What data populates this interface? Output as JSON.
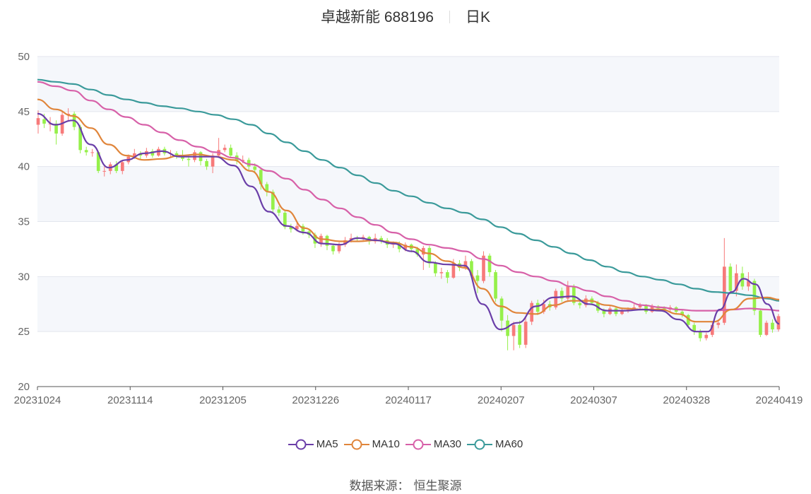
{
  "title": {
    "stock": "卓越新能 688196",
    "period": "日K"
  },
  "source": {
    "label": "数据来源：",
    "value": "恒生聚源"
  },
  "colors": {
    "up": "#f77a7a",
    "down": "#95f04a",
    "MA5": "#6a3ea8",
    "MA10": "#e0853a",
    "MA30": "#d760a8",
    "MA60": "#3a9a9a",
    "band": "#f5f7fb",
    "grid": "#e3e6ee",
    "axis": "#666666"
  },
  "chart_data": {
    "type": "candlestick",
    "ylim": [
      20,
      50
    ],
    "yticks": [
      20,
      25,
      30,
      35,
      40,
      45,
      50
    ],
    "xticks": [
      "20231024",
      "20231114",
      "20231205",
      "20231226",
      "20240117",
      "20240207",
      "20240307",
      "20240328",
      "20240419"
    ],
    "n_days": 121,
    "xtick_index": [
      0,
      15,
      30,
      45,
      60,
      75,
      90,
      105,
      120
    ],
    "legend": [
      "MA5",
      "MA10",
      "MA30",
      "MA60"
    ],
    "candles": [
      [
        43.8,
        44.4,
        45.1,
        43.0
      ],
      [
        44.3,
        43.9,
        44.8,
        43.5
      ],
      [
        43.9,
        43.9,
        44.5,
        43.2
      ],
      [
        43.9,
        43.0,
        44.2,
        42.0
      ],
      [
        43.0,
        44.7,
        45.0,
        42.8
      ],
      [
        44.7,
        44.8,
        45.3,
        44.2
      ],
      [
        44.8,
        43.6,
        45.0,
        43.3
      ],
      [
        43.6,
        41.5,
        43.8,
        41.2
      ],
      [
        41.5,
        41.3,
        41.8,
        41.0
      ],
      [
        41.3,
        41.3,
        41.6,
        40.9
      ],
      [
        41.3,
        39.6,
        41.4,
        39.4
      ],
      [
        39.6,
        39.6,
        40.0,
        39.1
      ],
      [
        39.6,
        40.2,
        40.4,
        39.3
      ],
      [
        40.2,
        39.6,
        40.5,
        39.4
      ],
      [
        39.6,
        40.4,
        40.6,
        39.3
      ],
      [
        40.4,
        40.9,
        41.1,
        40.2
      ],
      [
        40.9,
        41.2,
        41.6,
        40.7
      ],
      [
        41.2,
        41.0,
        41.4,
        40.6
      ],
      [
        41.0,
        41.4,
        41.7,
        40.8
      ],
      [
        41.4,
        41.0,
        41.6,
        40.8
      ],
      [
        41.0,
        41.6,
        41.8,
        40.9
      ],
      [
        41.6,
        41.2,
        41.8,
        41.0
      ],
      [
        41.2,
        41.2,
        41.5,
        40.8
      ],
      [
        41.2,
        41.0,
        41.4,
        40.7
      ],
      [
        41.0,
        40.7,
        41.5,
        40.5
      ],
      [
        40.7,
        40.6,
        41.0,
        40.0
      ],
      [
        40.6,
        41.3,
        41.5,
        40.4
      ],
      [
        41.3,
        40.5,
        41.4,
        40.1
      ],
      [
        40.5,
        40.0,
        40.7,
        39.7
      ],
      [
        40.0,
        41.0,
        41.2,
        39.4
      ],
      [
        41.0,
        41.5,
        42.6,
        40.8
      ],
      [
        41.5,
        41.7,
        42.0,
        41.3
      ],
      [
        41.7,
        41.0,
        42.0,
        40.8
      ],
      [
        41.0,
        40.5,
        41.3,
        40.2
      ],
      [
        40.5,
        40.6,
        41.0,
        40.3
      ],
      [
        40.6,
        40.0,
        40.8,
        39.7
      ],
      [
        40.0,
        39.7,
        40.3,
        39.4
      ],
      [
        39.7,
        38.4,
        39.9,
        37.9
      ],
      [
        38.4,
        37.7,
        38.6,
        37.3
      ],
      [
        37.7,
        36.1,
        37.9,
        35.8
      ],
      [
        36.1,
        35.8,
        36.4,
        35.5
      ],
      [
        35.8,
        34.5,
        36.0,
        34.3
      ],
      [
        34.5,
        34.3,
        34.8,
        34.0
      ],
      [
        34.3,
        34.6,
        34.9,
        34.1
      ],
      [
        34.6,
        34.1,
        34.8,
        33.8
      ],
      [
        34.1,
        33.8,
        34.3,
        33.5
      ],
      [
        33.8,
        33.0,
        34.0,
        32.6
      ],
      [
        33.0,
        33.7,
        33.9,
        32.7
      ],
      [
        33.7,
        32.8,
        33.8,
        32.4
      ],
      [
        32.8,
        32.3,
        33.0,
        32.0
      ],
      [
        32.3,
        32.9,
        33.1,
        32.1
      ],
      [
        32.9,
        33.3,
        33.6,
        32.7
      ],
      [
        33.3,
        33.5,
        33.9,
        33.1
      ],
      [
        33.5,
        33.4,
        33.7,
        33.2
      ],
      [
        33.4,
        33.6,
        33.8,
        33.3
      ],
      [
        33.6,
        33.2,
        33.7,
        32.9
      ],
      [
        33.2,
        33.5,
        33.9,
        33.0
      ],
      [
        33.5,
        33.3,
        33.7,
        33.0
      ],
      [
        33.3,
        32.9,
        33.5,
        32.6
      ],
      [
        32.9,
        33.0,
        33.2,
        32.6
      ],
      [
        33.0,
        32.5,
        33.2,
        32.2
      ],
      [
        32.5,
        32.9,
        33.1,
        32.3
      ],
      [
        32.9,
        32.5,
        33.0,
        32.2
      ],
      [
        32.5,
        32.0,
        32.7,
        31.8
      ],
      [
        32.0,
        32.6,
        32.8,
        30.6
      ],
      [
        32.6,
        31.2,
        32.8,
        30.8
      ],
      [
        31.2,
        30.3,
        31.4,
        30.0
      ],
      [
        30.3,
        30.4,
        30.8,
        29.8
      ],
      [
        30.4,
        29.9,
        30.6,
        29.4
      ],
      [
        29.9,
        31.2,
        31.6,
        29.8
      ],
      [
        31.2,
        30.8,
        31.5,
        30.5
      ],
      [
        30.8,
        31.4,
        31.9,
        30.6
      ],
      [
        31.4,
        30.1,
        31.6,
        29.9
      ],
      [
        30.1,
        29.6,
        30.6,
        28.5
      ],
      [
        29.6,
        31.9,
        32.3,
        29.4
      ],
      [
        31.9,
        30.4,
        32.1,
        30.0
      ],
      [
        30.4,
        28.0,
        30.6,
        27.7
      ],
      [
        28.0,
        26.0,
        28.2,
        25.0
      ],
      [
        26.0,
        24.6,
        26.5,
        23.3
      ],
      [
        24.6,
        25.6,
        25.9,
        23.3
      ],
      [
        25.6,
        23.8,
        26.0,
        23.5
      ],
      [
        23.8,
        25.9,
        26.3,
        23.5
      ],
      [
        25.9,
        27.6,
        27.8,
        25.6
      ],
      [
        27.6,
        26.8,
        27.9,
        26.5
      ],
      [
        26.8,
        27.5,
        27.9,
        26.6
      ],
      [
        27.5,
        27.2,
        27.8,
        26.9
      ],
      [
        27.2,
        28.7,
        28.9,
        27.0
      ],
      [
        28.7,
        28.0,
        29.0,
        27.7
      ],
      [
        28.0,
        29.1,
        29.6,
        27.8
      ],
      [
        29.1,
        27.6,
        29.3,
        27.4
      ],
      [
        27.6,
        27.4,
        27.9,
        27.1
      ],
      [
        27.4,
        28.0,
        28.3,
        27.2
      ],
      [
        28.0,
        27.6,
        28.2,
        27.4
      ],
      [
        27.6,
        26.9,
        27.8,
        26.7
      ],
      [
        26.9,
        26.6,
        27.1,
        26.3
      ],
      [
        26.6,
        27.1,
        27.3,
        26.5
      ],
      [
        27.1,
        26.6,
        27.3,
        26.4
      ],
      [
        26.6,
        26.9,
        27.1,
        26.5
      ],
      [
        26.9,
        27.0,
        27.2,
        26.7
      ],
      [
        27.0,
        27.2,
        27.5,
        26.9
      ],
      [
        27.2,
        27.4,
        27.6,
        27.0
      ],
      [
        27.4,
        26.8,
        27.5,
        26.6
      ],
      [
        26.8,
        27.3,
        27.5,
        26.7
      ],
      [
        27.3,
        27.1,
        27.4,
        26.9
      ],
      [
        27.1,
        27.0,
        27.3,
        26.8
      ],
      [
        27.0,
        27.2,
        27.4,
        26.8
      ],
      [
        27.2,
        26.8,
        27.3,
        26.6
      ],
      [
        26.8,
        26.5,
        27.0,
        26.3
      ],
      [
        26.5,
        25.6,
        26.6,
        25.4
      ],
      [
        25.6,
        25.0,
        25.8,
        24.7
      ],
      [
        25.0,
        24.4,
        25.2,
        24.1
      ],
      [
        24.4,
        24.7,
        24.9,
        24.2
      ],
      [
        24.7,
        25.6,
        25.9,
        24.5
      ],
      [
        25.6,
        25.8,
        26.1,
        25.3
      ],
      [
        25.8,
        30.9,
        33.5,
        25.6
      ],
      [
        30.9,
        28.7,
        31.2,
        28.4
      ],
      [
        28.7,
        30.3,
        31.1,
        28.2
      ],
      [
        30.3,
        29.1,
        30.9,
        28.8
      ],
      [
        29.1,
        29.6,
        30.4,
        28.7
      ],
      [
        29.6,
        26.9,
        29.8,
        26.5
      ]
    ],
    "candles_tail": [
      [
        26.9,
        24.7,
        27.0,
        24.5
      ],
      [
        24.7,
        25.8,
        26.0,
        24.6
      ],
      [
        25.8,
        25.2,
        26.1,
        24.9
      ],
      [
        25.2,
        26.4,
        26.6,
        25.0
      ]
    ],
    "MA5": [
      [
        0,
        44.8
      ],
      [
        3,
        43.8
      ],
      [
        6,
        44.2
      ],
      [
        9,
        42.0
      ],
      [
        12,
        39.9
      ],
      [
        15,
        40.6
      ],
      [
        18,
        41.2
      ],
      [
        21,
        41.4
      ],
      [
        24,
        40.9
      ],
      [
        27,
        40.9
      ],
      [
        30,
        40.9
      ],
      [
        33,
        40.1
      ],
      [
        36,
        38.2
      ],
      [
        39,
        35.9
      ],
      [
        42,
        34.6
      ],
      [
        45,
        34.0
      ],
      [
        48,
        33.0
      ],
      [
        51,
        32.9
      ],
      [
        54,
        33.5
      ],
      [
        57,
        33.3
      ],
      [
        60,
        33.0
      ],
      [
        63,
        32.3
      ],
      [
        66,
        31.3
      ],
      [
        69,
        31.1
      ],
      [
        72,
        31.0
      ],
      [
        75,
        27.5
      ],
      [
        78,
        25.2
      ],
      [
        81,
        25.8
      ],
      [
        84,
        27.3
      ],
      [
        87,
        28.1
      ],
      [
        90,
        28.2
      ],
      [
        93,
        27.5
      ],
      [
        96,
        26.9
      ],
      [
        99,
        26.9
      ],
      [
        102,
        27.0
      ],
      [
        105,
        26.9
      ],
      [
        108,
        26.1
      ],
      [
        111,
        25.0
      ],
      [
        113,
        25.0
      ],
      [
        115,
        27.0
      ],
      [
        117,
        28.6
      ],
      [
        119,
        29.8
      ],
      [
        121,
        29.3
      ],
      [
        123,
        27.5
      ],
      [
        125,
        25.7
      ]
    ],
    "MA10": [
      [
        0,
        46.1
      ],
      [
        3,
        45.2
      ],
      [
        6,
        44.6
      ],
      [
        9,
        43.5
      ],
      [
        12,
        42.0
      ],
      [
        15,
        41.0
      ],
      [
        18,
        40.6
      ],
      [
        21,
        40.7
      ],
      [
        24,
        41.0
      ],
      [
        27,
        41.1
      ],
      [
        30,
        40.9
      ],
      [
        33,
        40.6
      ],
      [
        36,
        39.6
      ],
      [
        39,
        37.7
      ],
      [
        42,
        36.0
      ],
      [
        45,
        34.4
      ],
      [
        48,
        33.4
      ],
      [
        51,
        33.2
      ],
      [
        54,
        33.2
      ],
      [
        57,
        33.3
      ],
      [
        60,
        33.1
      ],
      [
        63,
        32.7
      ],
      [
        66,
        32.1
      ],
      [
        69,
        31.4
      ],
      [
        72,
        30.8
      ],
      [
        75,
        28.9
      ],
      [
        78,
        27.3
      ],
      [
        81,
        26.7
      ],
      [
        84,
        26.6
      ],
      [
        87,
        27.4
      ],
      [
        90,
        27.8
      ],
      [
        93,
        27.8
      ],
      [
        96,
        27.4
      ],
      [
        99,
        27.1
      ],
      [
        102,
        27.0
      ],
      [
        105,
        27.0
      ],
      [
        108,
        26.6
      ],
      [
        111,
        25.9
      ],
      [
        114,
        25.9
      ],
      [
        117,
        27.0
      ],
      [
        120,
        28.0
      ],
      [
        123,
        28.1
      ],
      [
        125,
        27.9
      ]
    ],
    "MA30": [
      [
        0,
        47.7
      ],
      [
        3,
        47.3
      ],
      [
        6,
        46.9
      ],
      [
        9,
        46.0
      ],
      [
        12,
        45.2
      ],
      [
        15,
        44.5
      ],
      [
        18,
        43.8
      ],
      [
        21,
        43.1
      ],
      [
        24,
        42.4
      ],
      [
        27,
        41.8
      ],
      [
        30,
        41.3
      ],
      [
        33,
        40.8
      ],
      [
        36,
        40.2
      ],
      [
        39,
        39.6
      ],
      [
        42,
        38.9
      ],
      [
        45,
        37.9
      ],
      [
        48,
        37.0
      ],
      [
        51,
        36.2
      ],
      [
        54,
        35.4
      ],
      [
        57,
        34.7
      ],
      [
        60,
        34.0
      ],
      [
        63,
        33.4
      ],
      [
        66,
        32.9
      ],
      [
        69,
        32.6
      ],
      [
        72,
        32.3
      ],
      [
        75,
        31.6
      ],
      [
        78,
        31.0
      ],
      [
        81,
        30.4
      ],
      [
        84,
        30.0
      ],
      [
        87,
        29.6
      ],
      [
        90,
        29.1
      ],
      [
        93,
        28.7
      ],
      [
        96,
        28.2
      ],
      [
        99,
        27.8
      ],
      [
        102,
        27.4
      ],
      [
        105,
        27.2
      ],
      [
        108,
        27.0
      ],
      [
        111,
        26.9
      ],
      [
        114,
        26.9
      ],
      [
        117,
        27.0
      ],
      [
        120,
        27.1
      ],
      [
        123,
        27.0
      ],
      [
        125,
        26.9
      ]
    ],
    "MA60": [
      [
        0,
        47.9
      ],
      [
        3,
        47.7
      ],
      [
        6,
        47.5
      ],
      [
        9,
        47.0
      ],
      [
        12,
        46.5
      ],
      [
        15,
        46.1
      ],
      [
        18,
        45.8
      ],
      [
        21,
        45.5
      ],
      [
        24,
        45.3
      ],
      [
        27,
        45.0
      ],
      [
        30,
        44.7
      ],
      [
        33,
        44.3
      ],
      [
        36,
        43.8
      ],
      [
        39,
        43.0
      ],
      [
        42,
        42.2
      ],
      [
        45,
        41.4
      ],
      [
        48,
        40.6
      ],
      [
        51,
        39.9
      ],
      [
        54,
        39.2
      ],
      [
        57,
        38.5
      ],
      [
        60,
        37.8
      ],
      [
        63,
        37.3
      ],
      [
        66,
        36.7
      ],
      [
        69,
        36.2
      ],
      [
        72,
        35.8
      ],
      [
        75,
        35.2
      ],
      [
        78,
        34.5
      ],
      [
        81,
        33.9
      ],
      [
        84,
        33.3
      ],
      [
        87,
        32.7
      ],
      [
        90,
        32.1
      ],
      [
        93,
        31.5
      ],
      [
        96,
        30.9
      ],
      [
        99,
        30.4
      ],
      [
        102,
        30.0
      ],
      [
        105,
        29.7
      ],
      [
        108,
        29.3
      ],
      [
        111,
        28.9
      ],
      [
        114,
        28.6
      ],
      [
        117,
        28.5
      ],
      [
        120,
        28.3
      ],
      [
        123,
        28.0
      ],
      [
        125,
        27.8
      ]
    ]
  }
}
